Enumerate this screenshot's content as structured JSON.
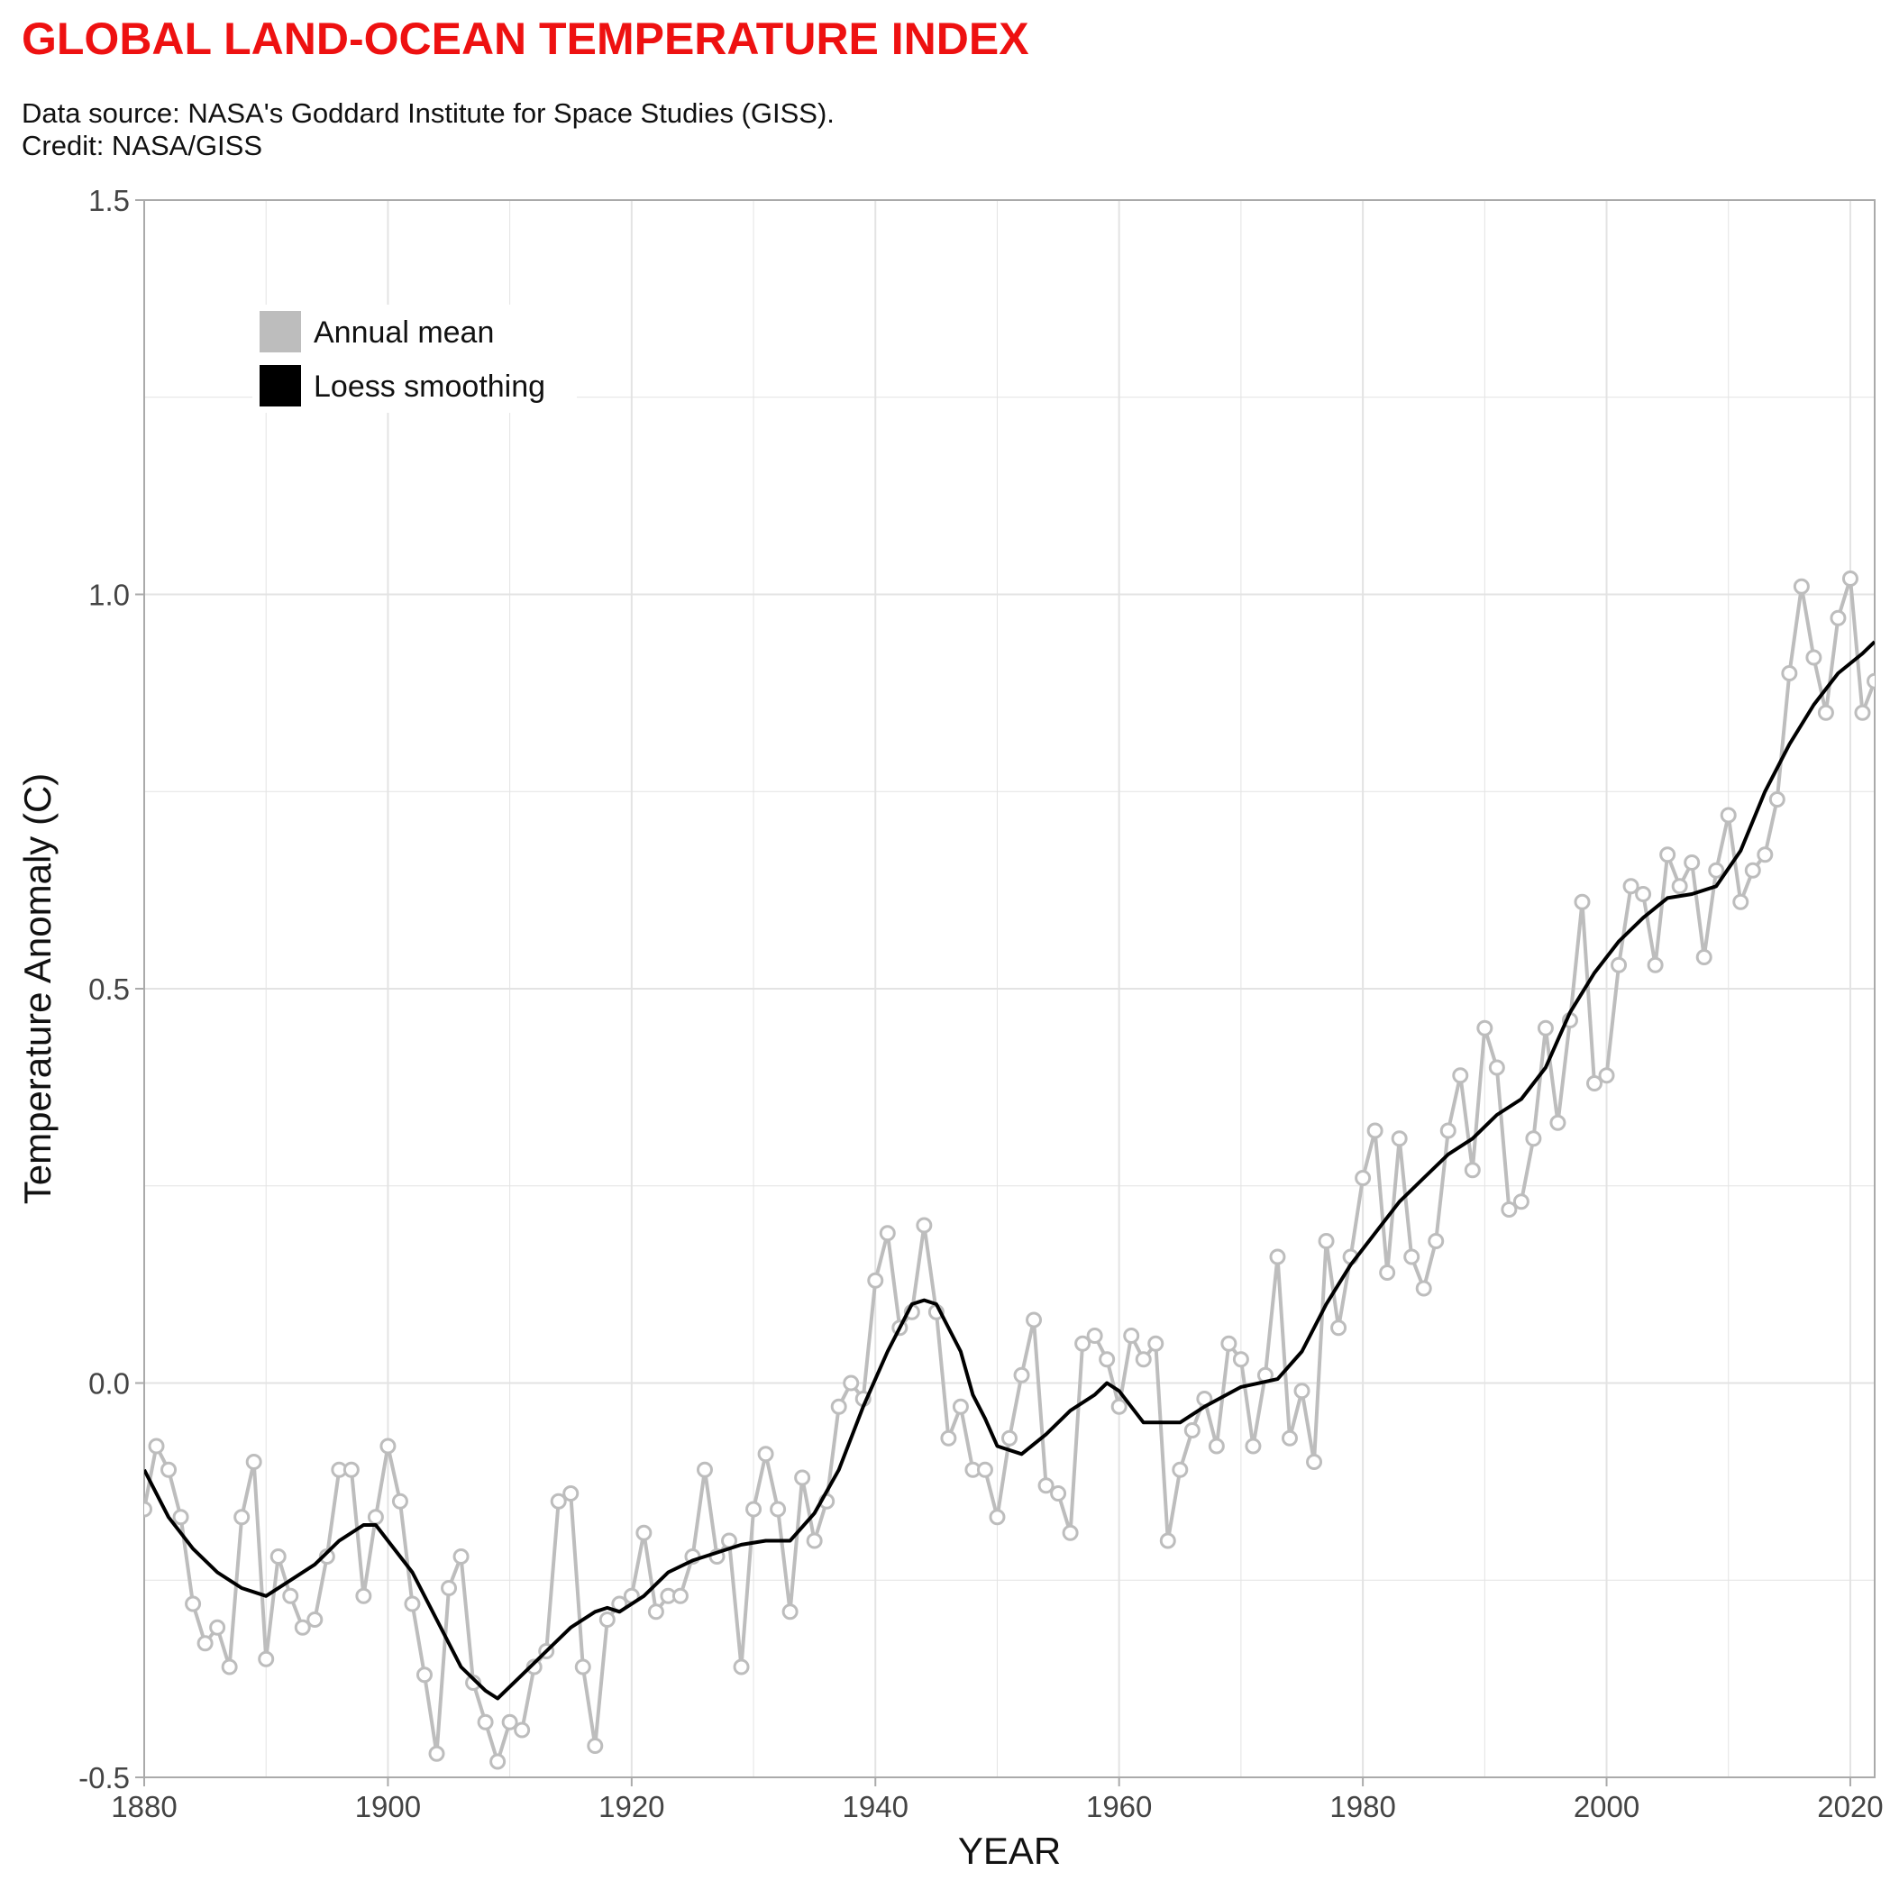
{
  "header": {
    "title": "GLOBAL LAND-OCEAN TEMPERATURE INDEX",
    "source_line": "Data source: NASA's Goddard Institute for Space Studies (GISS).",
    "credit_line": "Credit: NASA/GISS"
  },
  "colors": {
    "title": "#ee1111",
    "annual": "#bdbdbd",
    "smooth": "#000000",
    "grid": "#e3e3e3",
    "frame": "#aaaaaa"
  },
  "chart_data": {
    "type": "line",
    "xlabel": "YEAR",
    "ylabel": "Temperature Anomaly (C)",
    "xlim": [
      1880,
      2022
    ],
    "ylim": [
      -0.5,
      1.5
    ],
    "x_ticks": [
      1880,
      1900,
      1920,
      1940,
      1960,
      1980,
      2000,
      2020
    ],
    "y_ticks": [
      "-0.5",
      "0.0",
      "0.5",
      "1.0",
      "1.5"
    ],
    "grid": true,
    "legend_position": "top-left",
    "legend": [
      "Annual mean",
      "Loess smoothing"
    ],
    "x": [
      1880,
      1881,
      1882,
      1883,
      1884,
      1885,
      1886,
      1887,
      1888,
      1889,
      1890,
      1891,
      1892,
      1893,
      1894,
      1895,
      1896,
      1897,
      1898,
      1899,
      1900,
      1901,
      1902,
      1903,
      1904,
      1905,
      1906,
      1907,
      1908,
      1909,
      1910,
      1911,
      1912,
      1913,
      1914,
      1915,
      1916,
      1917,
      1918,
      1919,
      1920,
      1921,
      1922,
      1923,
      1924,
      1925,
      1926,
      1927,
      1928,
      1929,
      1930,
      1931,
      1932,
      1933,
      1934,
      1935,
      1936,
      1937,
      1938,
      1939,
      1940,
      1941,
      1942,
      1943,
      1944,
      1945,
      1946,
      1947,
      1948,
      1949,
      1950,
      1951,
      1952,
      1953,
      1954,
      1955,
      1956,
      1957,
      1958,
      1959,
      1960,
      1961,
      1962,
      1963,
      1964,
      1965,
      1966,
      1967,
      1968,
      1969,
      1970,
      1971,
      1972,
      1973,
      1974,
      1975,
      1976,
      1977,
      1978,
      1979,
      1980,
      1981,
      1982,
      1983,
      1984,
      1985,
      1986,
      1987,
      1988,
      1989,
      1990,
      1991,
      1992,
      1993,
      1994,
      1995,
      1996,
      1997,
      1998,
      1999,
      2000,
      2001,
      2002,
      2003,
      2004,
      2005,
      2006,
      2007,
      2008,
      2009,
      2010,
      2011,
      2012,
      2013,
      2014,
      2015,
      2016,
      2017,
      2018,
      2019,
      2020,
      2021,
      2022
    ],
    "series": [
      {
        "name": "Annual mean",
        "values": [
          -0.16,
          -0.08,
          -0.11,
          -0.17,
          -0.28,
          -0.33,
          -0.31,
          -0.36,
          -0.17,
          -0.1,
          -0.35,
          -0.22,
          -0.27,
          -0.31,
          -0.3,
          -0.22,
          -0.11,
          -0.11,
          -0.27,
          -0.17,
          -0.08,
          -0.15,
          -0.28,
          -0.37,
          -0.47,
          -0.26,
          -0.22,
          -0.38,
          -0.43,
          -0.48,
          -0.43,
          -0.44,
          -0.36,
          -0.34,
          -0.15,
          -0.14,
          -0.36,
          -0.46,
          -0.3,
          -0.28,
          -0.27,
          -0.19,
          -0.29,
          -0.27,
          -0.27,
          -0.22,
          -0.11,
          -0.22,
          -0.2,
          -0.36,
          -0.16,
          -0.09,
          -0.16,
          -0.29,
          -0.12,
          -0.2,
          -0.15,
          -0.03,
          0.0,
          -0.02,
          0.13,
          0.19,
          0.07,
          0.09,
          0.2,
          0.09,
          -0.07,
          -0.03,
          -0.11,
          -0.11,
          -0.17,
          -0.07,
          0.01,
          0.08,
          -0.13,
          -0.14,
          -0.19,
          0.05,
          0.06,
          0.03,
          -0.03,
          0.06,
          0.03,
          0.05,
          -0.2,
          -0.11,
          -0.06,
          -0.02,
          -0.08,
          0.05,
          0.03,
          -0.08,
          0.01,
          0.16,
          -0.07,
          -0.01,
          -0.1,
          0.18,
          0.07,
          0.16,
          0.26,
          0.32,
          0.14,
          0.31,
          0.16,
          0.12,
          0.18,
          0.32,
          0.39,
          0.27,
          0.45,
          0.4,
          0.22,
          0.23,
          0.31,
          0.45,
          0.33,
          0.46,
          0.61,
          0.38,
          0.39,
          0.53,
          0.63,
          0.62,
          0.53,
          0.67,
          0.63,
          0.66,
          0.54,
          0.65,
          0.72,
          0.61,
          0.65,
          0.67,
          0.74,
          0.9,
          1.01,
          0.92,
          0.85,
          0.97,
          1.02,
          0.85,
          0.89
        ]
      },
      {
        "name": "Loess smoothing",
        "values": [
          -0.11,
          -0.17,
          -0.21,
          -0.24,
          -0.26,
          -0.27,
          -0.25,
          -0.23,
          -0.2,
          -0.18,
          -0.18,
          -0.2,
          -0.24,
          -0.3,
          -0.36,
          -0.39,
          -0.4,
          -0.37,
          -0.34,
          -0.31,
          -0.29,
          -0.285,
          -0.29,
          -0.27,
          -0.24,
          -0.225,
          -0.215,
          -0.205,
          -0.2,
          -0.2,
          -0.165,
          -0.11,
          -0.03,
          0.04,
          0.1,
          0.105,
          0.1,
          0.04,
          -0.015,
          -0.045,
          -0.08,
          -0.09,
          -0.065,
          -0.035,
          -0.015,
          0.0,
          -0.01,
          -0.03,
          -0.05,
          -0.05,
          -0.03,
          -0.005,
          0.005,
          0.04,
          0.1,
          0.15,
          0.19,
          0.23,
          0.26,
          0.29,
          0.31,
          0.34,
          0.36,
          0.4,
          0.47,
          0.52,
          0.56,
          0.59,
          0.615,
          0.62,
          0.63,
          0.675,
          0.75,
          0.81,
          0.86,
          0.9,
          0.925,
          0.94
        ],
        "x": [
          1880,
          1882,
          1884,
          1886,
          1888,
          1890,
          1892,
          1894,
          1896,
          1898,
          1899,
          1900,
          1902,
          1904,
          1906,
          1908,
          1909,
          1911,
          1913,
          1915,
          1917,
          1918,
          1919,
          1921,
          1923,
          1925,
          1927,
          1929,
          1931,
          1933,
          1935,
          1937,
          1939,
          1941,
          1943,
          1944,
          1945,
          1947,
          1948,
          1949,
          1950,
          1952,
          1954,
          1956,
          1958,
          1959,
          1960,
          1961,
          1962,
          1965,
          1967,
          1970,
          1973,
          1975,
          1977,
          1979,
          1981,
          1983,
          1985,
          1987,
          1989,
          1991,
          1993,
          1995,
          1997,
          1999,
          2001,
          2003,
          2005,
          2007,
          2009,
          2011,
          2013,
          2015,
          2017,
          2019,
          2021,
          2022
        ]
      }
    ]
  }
}
